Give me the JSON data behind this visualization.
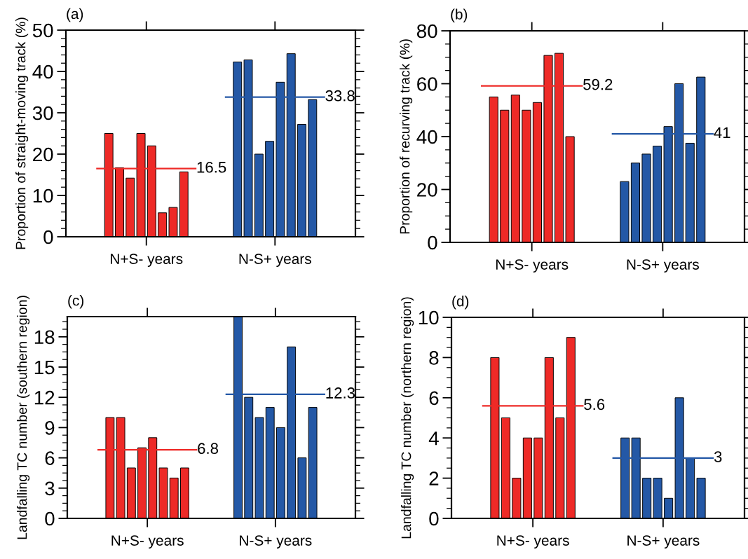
{
  "chart_data": [
    {
      "type": "bar",
      "title": "(a)",
      "ylabel": "Proportion of straight-moving track (%)",
      "categories": [
        "N+S- years",
        "N-S+ years"
      ],
      "ylim": [
        0,
        50
      ],
      "yticks": [
        0,
        10,
        20,
        30,
        40,
        50
      ],
      "series": [
        {
          "colors": [
            "#ee2a27",
            "#2458a6"
          ],
          "values": [
            25,
            42.3
          ]
        },
        {
          "colors": [
            "#ee2a27",
            "#2458a6"
          ],
          "values": [
            16.7,
            42.8
          ]
        },
        {
          "colors": [
            "#ee2a27",
            "#2458a6"
          ],
          "values": [
            14.2,
            20
          ]
        },
        {
          "colors": [
            "#ee2a27",
            "#2458a6"
          ],
          "values": [
            25,
            23.1
          ]
        },
        {
          "colors": [
            "#ee2a27",
            "#2458a6"
          ],
          "values": [
            22,
            37.4
          ]
        },
        {
          "colors": [
            "#ee2a27",
            "#2458a6"
          ],
          "values": [
            5.8,
            44.3
          ]
        },
        {
          "colors": [
            "#ee2a27",
            "#2458a6"
          ],
          "values": [
            7.1,
            27.2
          ]
        },
        {
          "colors": [
            "#ee2a27",
            "#2458a6"
          ],
          "values": [
            15.7,
            33.2
          ]
        }
      ],
      "ref_lines": [
        {
          "axis": "y",
          "value": 16.5,
          "label": "16.5",
          "color": "#ee2a27"
        },
        {
          "axis": "y",
          "value": 33.8,
          "label": "33.8",
          "color": "#2458a6"
        }
      ]
    },
    {
      "type": "bar",
      "title": "(b)",
      "ylabel": "Proportion of recurving track (%)",
      "categories": [
        "N+S- years",
        "N-S+ years"
      ],
      "ylim": [
        0,
        80
      ],
      "yticks": [
        0,
        20,
        40,
        60,
        80
      ],
      "series": [
        {
          "colors": [
            "#ee2a27",
            "#2458a6"
          ],
          "values": [
            55,
            23
          ]
        },
        {
          "colors": [
            "#ee2a27",
            "#2458a6"
          ],
          "values": [
            50,
            30
          ]
        },
        {
          "colors": [
            "#ee2a27",
            "#2458a6"
          ],
          "values": [
            55.7,
            33.4
          ]
        },
        {
          "colors": [
            "#ee2a27",
            "#2458a6"
          ],
          "values": [
            50,
            36.4
          ]
        },
        {
          "colors": [
            "#ee2a27",
            "#2458a6"
          ],
          "values": [
            52.9,
            43.8
          ]
        },
        {
          "colors": [
            "#ee2a27",
            "#2458a6"
          ],
          "values": [
            70.7,
            60
          ]
        },
        {
          "colors": [
            "#ee2a27",
            "#2458a6"
          ],
          "values": [
            71.5,
            37.5
          ]
        },
        {
          "colors": [
            "#ee2a27",
            "#2458a6"
          ],
          "values": [
            40,
            62.5
          ]
        }
      ],
      "ref_lines": [
        {
          "axis": "y",
          "value": 59.2,
          "label": "59.2",
          "color": "#ee2a27"
        },
        {
          "axis": "y",
          "value": 41,
          "label": "41",
          "color": "#2458a6"
        }
      ]
    },
    {
      "type": "bar",
      "title": "(c)",
      "ylabel": "Landfalling TC number (southern region)",
      "categories": [
        "N+S- years",
        "N-S+ years"
      ],
      "ylim": [
        0,
        20
      ],
      "yticks": [
        0,
        3,
        6,
        9,
        12,
        15,
        18
      ],
      "series": [
        {
          "colors": [
            "#ee2a27",
            "#2458a6"
          ],
          "values": [
            10,
            20
          ]
        },
        {
          "colors": [
            "#ee2a27",
            "#2458a6"
          ],
          "values": [
            10,
            12
          ]
        },
        {
          "colors": [
            "#ee2a27",
            "#2458a6"
          ],
          "values": [
            5,
            10
          ]
        },
        {
          "colors": [
            "#ee2a27",
            "#2458a6"
          ],
          "values": [
            7,
            11
          ]
        },
        {
          "colors": [
            "#ee2a27",
            "#2458a6"
          ],
          "values": [
            8,
            9
          ]
        },
        {
          "colors": [
            "#ee2a27",
            "#2458a6"
          ],
          "values": [
            5,
            17
          ]
        },
        {
          "colors": [
            "#ee2a27",
            "#2458a6"
          ],
          "values": [
            4,
            6
          ]
        },
        {
          "colors": [
            "#ee2a27",
            "#2458a6"
          ],
          "values": [
            5,
            11
          ]
        }
      ],
      "ref_lines": [
        {
          "axis": "y",
          "value": 6.8,
          "label": "6.8",
          "color": "#ee2a27"
        },
        {
          "axis": "y",
          "value": 12.3,
          "label": "12.3",
          "color": "#2458a6"
        }
      ]
    },
    {
      "type": "bar",
      "title": "(d)",
      "ylabel": "Landfalling TC number (northern region)",
      "categories": [
        "N+S- years",
        "N-S+ years"
      ],
      "ylim": [
        0,
        10
      ],
      "yticks": [
        0,
        2,
        4,
        6,
        8,
        10
      ],
      "series": [
        {
          "colors": [
            "#ee2a27",
            "#2458a6"
          ],
          "values": [
            8,
            4
          ]
        },
        {
          "colors": [
            "#ee2a27",
            "#2458a6"
          ],
          "values": [
            5,
            4
          ]
        },
        {
          "colors": [
            "#ee2a27",
            "#2458a6"
          ],
          "values": [
            2,
            2
          ]
        },
        {
          "colors": [
            "#ee2a27",
            "#2458a6"
          ],
          "values": [
            4,
            2
          ]
        },
        {
          "colors": [
            "#ee2a27",
            "#2458a6"
          ],
          "values": [
            4,
            1
          ]
        },
        {
          "colors": [
            "#ee2a27",
            "#2458a6"
          ],
          "values": [
            8,
            6
          ]
        },
        {
          "colors": [
            "#ee2a27",
            "#2458a6"
          ],
          "values": [
            5,
            3
          ]
        },
        {
          "colors": [
            "#ee2a27",
            "#2458a6"
          ],
          "values": [
            9,
            2
          ]
        }
      ],
      "ref_lines": [
        {
          "axis": "y",
          "value": 5.6,
          "label": "5.6",
          "color": "#ee2a27"
        },
        {
          "axis": "y",
          "value": 3,
          "label": "3",
          "color": "#2458a6"
        }
      ]
    }
  ]
}
